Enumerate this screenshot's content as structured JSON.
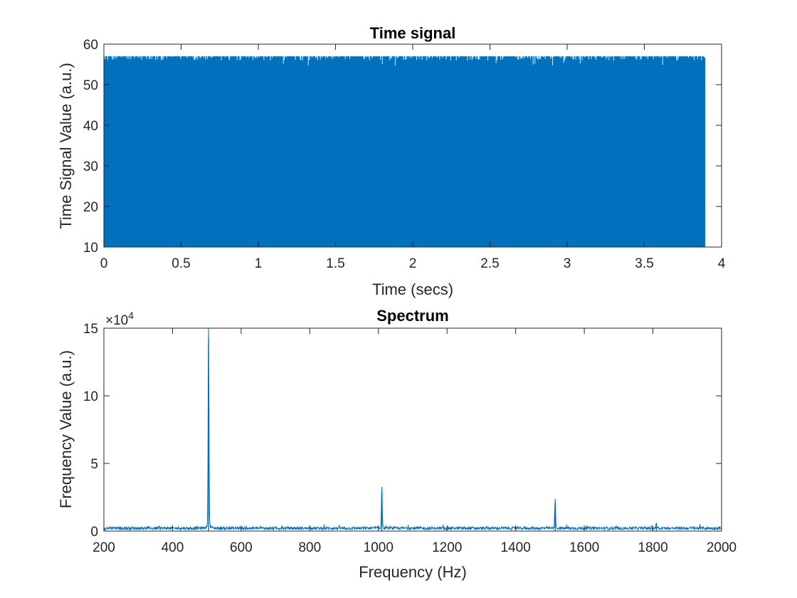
{
  "chart_data": [
    {
      "type": "line",
      "title": "Time signal",
      "xlabel": "Time (secs)",
      "ylabel": "Time Signal Value (a.u.)",
      "xlim": [
        0,
        4
      ],
      "ylim": [
        10,
        60
      ],
      "xticks": [
        0,
        0.5,
        1,
        1.5,
        2,
        2.5,
        3,
        3.5,
        4
      ],
      "xtick_labels": [
        "0",
        "0.5",
        "1",
        "1.5",
        "2",
        "2.5",
        "3",
        "3.5",
        "4"
      ],
      "yticks": [
        10,
        20,
        30,
        40,
        50,
        60
      ],
      "ytick_labels": [
        "10",
        "20",
        "30",
        "40",
        "50",
        "60"
      ],
      "grid": false,
      "color": "#0072bd",
      "series": [
        {
          "x_range": [
            0,
            3.89
          ],
          "y_range": [
            10,
            57
          ],
          "description_values": {
            "min": 10,
            "max": 57,
            "dips_near_top": [
              55,
              56
            ]
          }
        }
      ]
    },
    {
      "type": "line",
      "title": "Spectrum",
      "xlabel": "Frequency (Hz)",
      "ylabel": "Frequency Value (a.u.)",
      "xlim": [
        200,
        2000
      ],
      "ylim": [
        0,
        15
      ],
      "y_exponent_label": "×10",
      "y_exponent_power": "4",
      "xticks": [
        200,
        400,
        600,
        800,
        1000,
        1200,
        1400,
        1600,
        1800,
        2000
      ],
      "xtick_labels": [
        "200",
        "400",
        "600",
        "800",
        "1000",
        "1200",
        "1400",
        "1600",
        "1800",
        "2000"
      ],
      "yticks": [
        0,
        5,
        10,
        15
      ],
      "ytick_labels": [
        "0",
        "5",
        "10",
        "15"
      ],
      "grid": false,
      "color": "#0072bd",
      "series": [
        {
          "noise_floor": 0.2,
          "peaks": [
            {
              "x": 505,
              "y": 14.3
            },
            {
              "x": 1010,
              "y": 3.0
            },
            {
              "x": 1515,
              "y": 2.1
            },
            {
              "x": 1810,
              "y": 0.35
            }
          ]
        }
      ]
    }
  ]
}
